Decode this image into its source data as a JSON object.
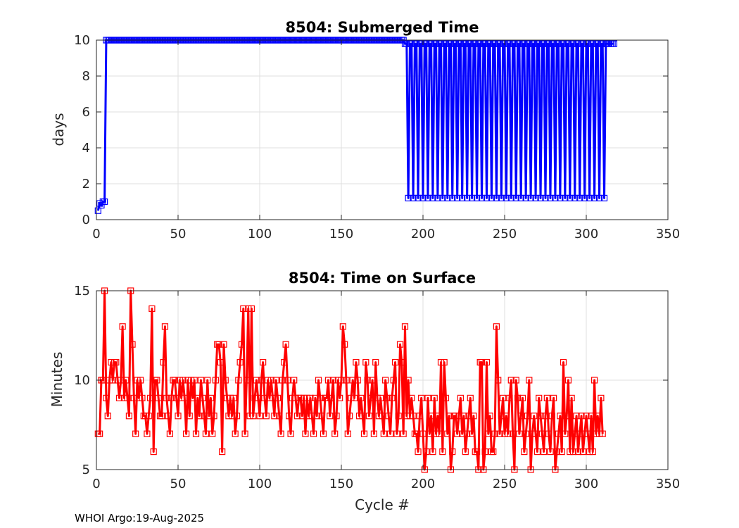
{
  "footer": "WHOI Argo:19-Aug-2025",
  "colors": {
    "series1": "#0000ff",
    "series2": "#ff0000",
    "grid": "#dfdfdf",
    "axis": "#262626"
  },
  "chart_data": [
    {
      "type": "line",
      "title": "8504: Submerged Time",
      "xlabel": "",
      "ylabel": "days",
      "xlim": [
        0,
        350
      ],
      "ylim": [
        0,
        10
      ],
      "xticks": [
        0,
        50,
        100,
        150,
        200,
        250,
        300,
        350
      ],
      "yticks": [
        0,
        2,
        4,
        6,
        8,
        10
      ],
      "grid": true,
      "marker": "square",
      "series": [
        {
          "name": "Submerged Time",
          "color": "#0000ff",
          "segments": [
            {
              "x_start": 1,
              "x_end": 5,
              "values": [
                0.5,
                0.9,
                0.8,
                1.0,
                1.0
              ]
            },
            {
              "x_start": 6,
              "x_end": 188,
              "constant": 10.0
            },
            {
              "x_start": 189,
              "x_end": 311,
              "alternating": [
                9.8,
                1.2
              ],
              "period": 3
            },
            {
              "x_start": 312,
              "x_end": 317,
              "constant": 9.8
            }
          ]
        }
      ]
    },
    {
      "type": "line",
      "title": "8504: Time on Surface",
      "xlabel": "Cycle #",
      "ylabel": "Minutes",
      "xlim": [
        0,
        350
      ],
      "ylim": [
        5,
        15
      ],
      "xticks": [
        0,
        50,
        100,
        150,
        200,
        250,
        300,
        350
      ],
      "yticks": [
        5,
        10,
        15
      ],
      "grid": true,
      "marker": "square",
      "series": [
        {
          "name": "Time on Surface",
          "color": "#ff0000",
          "x_start": 1,
          "values": [
            7,
            7,
            10,
            10,
            15,
            9,
            8,
            10,
            11,
            10,
            11,
            11,
            10,
            9,
            10,
            13,
            9,
            10,
            9,
            8,
            15,
            12,
            9,
            7,
            10,
            9,
            10,
            9,
            8,
            8,
            7,
            8,
            9,
            14,
            6,
            10,
            10,
            9,
            8,
            8,
            11,
            13,
            9,
            8,
            7,
            9,
            10,
            10,
            9,
            8,
            10,
            9,
            10,
            9,
            7,
            10,
            8,
            10,
            9,
            10,
            7,
            9,
            8,
            10,
            9,
            8,
            7,
            10,
            8,
            9,
            7,
            8,
            10,
            12,
            12,
            11,
            6,
            12,
            10,
            9,
            8,
            9,
            8,
            9,
            7,
            8,
            10,
            11,
            12,
            14,
            7,
            10,
            14,
            8,
            14,
            8,
            9,
            10,
            9,
            8,
            10,
            11,
            9,
            8,
            10,
            9,
            10,
            9,
            8,
            10,
            9,
            8,
            7,
            10,
            11,
            12,
            10,
            8,
            7,
            9,
            10,
            9,
            8,
            9,
            9,
            8,
            9,
            7,
            9,
            8,
            9,
            8,
            7,
            9,
            8,
            10,
            9,
            8,
            7,
            9,
            9,
            10,
            8,
            9,
            10,
            7,
            8,
            10,
            9,
            10,
            13,
            12,
            10,
            7,
            8,
            9,
            10,
            9,
            11,
            10,
            8,
            9,
            8,
            7,
            11,
            10,
            8,
            9,
            10,
            7,
            11,
            9,
            8,
            9,
            8,
            7,
            10,
            9,
            8,
            7,
            9,
            10,
            11,
            7,
            8,
            12,
            11,
            7,
            13,
            8,
            10,
            8,
            9,
            8,
            7,
            7,
            6,
            8,
            9,
            7,
            5,
            6,
            9,
            7,
            8,
            6,
            9,
            7,
            8,
            7,
            11,
            6,
            11,
            9,
            7,
            8,
            5,
            6,
            8,
            8,
            7,
            8,
            9,
            7,
            8,
            6,
            7,
            8,
            9,
            7,
            8,
            6,
            6,
            5,
            11,
            11,
            5,
            6,
            11,
            7,
            8,
            6,
            6,
            7,
            13,
            10,
            7,
            8,
            9,
            7,
            8,
            7,
            9,
            10,
            7,
            5,
            10,
            9,
            7,
            8,
            9,
            6,
            7,
            8,
            10,
            5,
            7,
            8,
            7,
            6,
            9,
            8,
            7,
            6,
            8,
            9,
            7,
            6,
            8,
            9,
            5,
            6,
            7,
            8,
            6,
            11,
            7,
            8,
            10,
            6,
            9,
            6,
            7,
            8,
            6,
            7,
            8,
            6,
            7,
            8,
            7,
            6,
            8,
            6,
            10,
            7,
            8,
            7,
            9,
            7
          ]
        }
      ]
    }
  ]
}
